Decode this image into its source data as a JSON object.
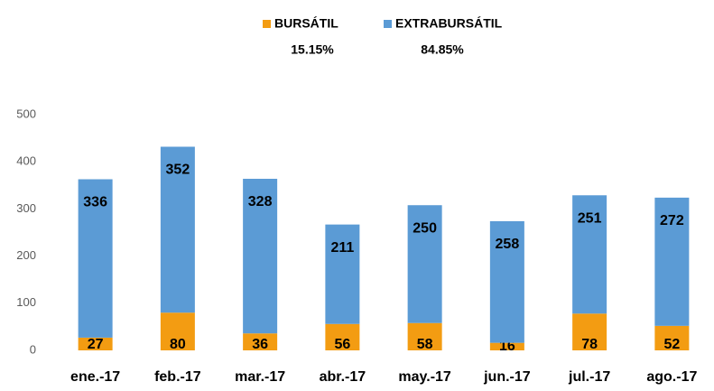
{
  "chart_data": {
    "type": "stacked_bar",
    "categories": [
      "ene.-17",
      "feb.-17",
      "mar.-17",
      "abr.-17",
      "may.-17",
      "jun.-17",
      "jul.-17",
      "ago.-17"
    ],
    "series": [
      {
        "name": "BURSÁTIL",
        "share": "15.15%",
        "color": "#f39c12",
        "values": [
          27,
          80,
          36,
          56,
          58,
          16,
          78,
          52
        ]
      },
      {
        "name": "EXTRABURSÁTIL",
        "share": "84.85%",
        "color": "#5b9bd5",
        "values": [
          336,
          352,
          328,
          211,
          250,
          258,
          251,
          272
        ]
      }
    ],
    "ylim": [
      0,
      500
    ],
    "yticks": [
      0,
      100,
      200,
      300,
      400,
      500
    ],
    "grid": false,
    "legend": "top"
  }
}
